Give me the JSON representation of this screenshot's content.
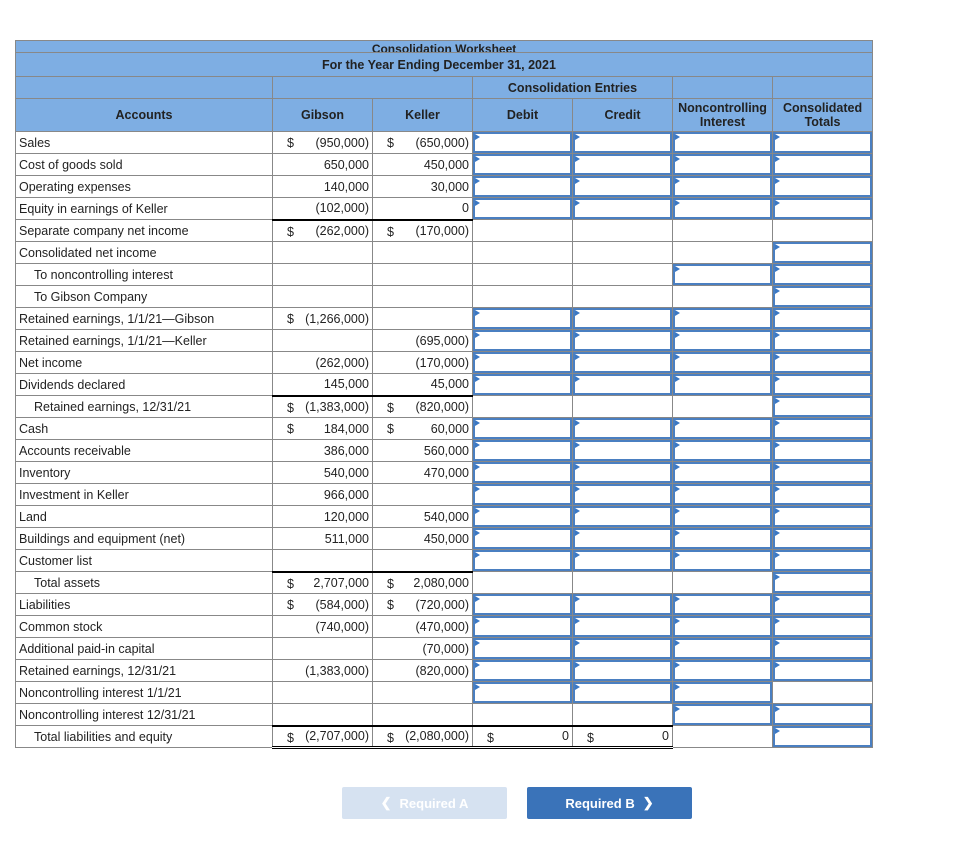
{
  "header": {
    "cut_title": "Consolidation Worksheet",
    "period": "For the Year Ending December 31, 2021",
    "consolidation_entries": "Consolidation Entries",
    "columns": {
      "accounts": "Accounts",
      "gibson": "Gibson",
      "keller": "Keller",
      "debit": "Debit",
      "credit": "Credit",
      "nci": "Noncontrolling Interest",
      "totals": "Consolidated Totals"
    }
  },
  "rows": [
    {
      "label": "Sales",
      "gibson": "(950,000)",
      "gibson_dollar": "$",
      "keller": "(650,000)",
      "keller_dollar": "$"
    },
    {
      "label": "Cost of goods sold",
      "gibson": "650,000",
      "keller": "450,000"
    },
    {
      "label": "Operating expenses",
      "gibson": "140,000",
      "keller": "30,000"
    },
    {
      "label": "Equity in earnings of Keller",
      "gibson": "(102,000)",
      "keller": "0"
    },
    {
      "label": "Separate company net income",
      "gibson": "(262,000)",
      "gibson_dollar": "$",
      "keller": "(170,000)",
      "keller_dollar": "$"
    },
    {
      "label": "Consolidated net income"
    },
    {
      "label": "To noncontrolling interest",
      "indent": true
    },
    {
      "label": "To Gibson Company",
      "indent": true
    },
    {
      "label": "Retained earnings, 1/1/21—Gibson",
      "gibson": "(1,266,000)",
      "gibson_dollar": "$"
    },
    {
      "label": "Retained earnings, 1/1/21—Keller",
      "keller": "(695,000)"
    },
    {
      "label": "Net income",
      "gibson": "(262,000)",
      "keller": "(170,000)"
    },
    {
      "label": "Dividends declared",
      "gibson": "145,000",
      "keller": "45,000"
    },
    {
      "label": "Retained earnings, 12/31/21",
      "indent": true,
      "gibson": "(1,383,000)",
      "gibson_dollar": "$",
      "keller": "(820,000)",
      "keller_dollar": "$"
    },
    {
      "label": "Cash",
      "gibson": "184,000",
      "gibson_dollar": "$",
      "keller": "60,000",
      "keller_dollar": "$"
    },
    {
      "label": "Accounts receivable",
      "gibson": "386,000",
      "keller": "560,000"
    },
    {
      "label": "Inventory",
      "gibson": "540,000",
      "keller": "470,000"
    },
    {
      "label": "Investment in Keller",
      "gibson": "966,000"
    },
    {
      "label": "Land",
      "gibson": "120,000",
      "keller": "540,000"
    },
    {
      "label": "Buildings and equipment (net)",
      "gibson": "511,000",
      "keller": "450,000"
    },
    {
      "label": "Customer list"
    },
    {
      "label": "Total assets",
      "indent": true,
      "gibson": "2,707,000",
      "gibson_dollar": "$",
      "keller": "2,080,000",
      "keller_dollar": "$"
    },
    {
      "label": "Liabilities",
      "gibson": "(584,000)",
      "gibson_dollar": "$",
      "keller": "(720,000)",
      "keller_dollar": "$"
    },
    {
      "label": "Common stock",
      "gibson": "(740,000)",
      "keller": "(470,000)"
    },
    {
      "label": "Additional paid-in capital",
      "keller": "(70,000)"
    },
    {
      "label": "Retained earnings, 12/31/21",
      "gibson": "(1,383,000)",
      "keller": "(820,000)"
    },
    {
      "label": "Noncontrolling interest 1/1/21"
    },
    {
      "label": "Noncontrolling interest 12/31/21"
    },
    {
      "label": "Total liabilities and equity",
      "indent": true,
      "gibson": "(2,707,000)",
      "gibson_dollar": "$",
      "keller": "(2,080,000)",
      "keller_dollar": "$",
      "debit": "0",
      "debit_dollar": "$",
      "credit": "0",
      "credit_dollar": "$"
    }
  ],
  "nav": {
    "prev_label": "Required A",
    "next_label": "Required B",
    "prev_icon": "chevron-left-icon",
    "next_icon": "chevron-right-icon"
  },
  "colors": {
    "header_bg": "#7eaee3",
    "input_border": "#4a7fc1",
    "button": "#3a73b9",
    "button_disabled": "#d6e2f1"
  }
}
